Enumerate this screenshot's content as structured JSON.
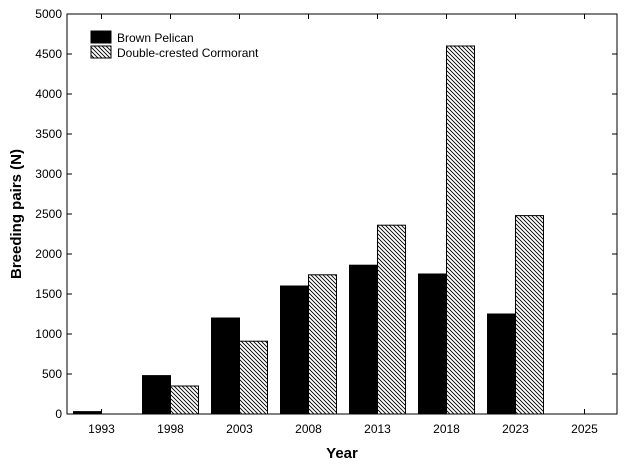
{
  "chart_data": {
    "type": "bar",
    "title": "",
    "xlabel": "Year",
    "ylabel": "Breeding pairs (N)",
    "ylim": [
      0,
      5000
    ],
    "yticks": [
      0,
      500,
      1000,
      1500,
      2000,
      2500,
      3000,
      3500,
      4000,
      4500,
      5000
    ],
    "categories": [
      "1993",
      "1998",
      "2003",
      "2008",
      "2013",
      "2018",
      "2023",
      "2025"
    ],
    "series": [
      {
        "name": "Brown Pelican",
        "fill": "solid-black",
        "values": [
          30,
          480,
          1200,
          1600,
          1860,
          1750,
          1250,
          null
        ]
      },
      {
        "name": "Double-crested Cormorant",
        "fill": "diagonal-hatch",
        "values": [
          null,
          350,
          910,
          1740,
          2360,
          4600,
          2480,
          null
        ]
      }
    ],
    "legend_position": "top-left",
    "grid": false,
    "colors": {
      "bar_solid": "#000000",
      "hatch": "#000000",
      "background": "#ffffff"
    }
  }
}
